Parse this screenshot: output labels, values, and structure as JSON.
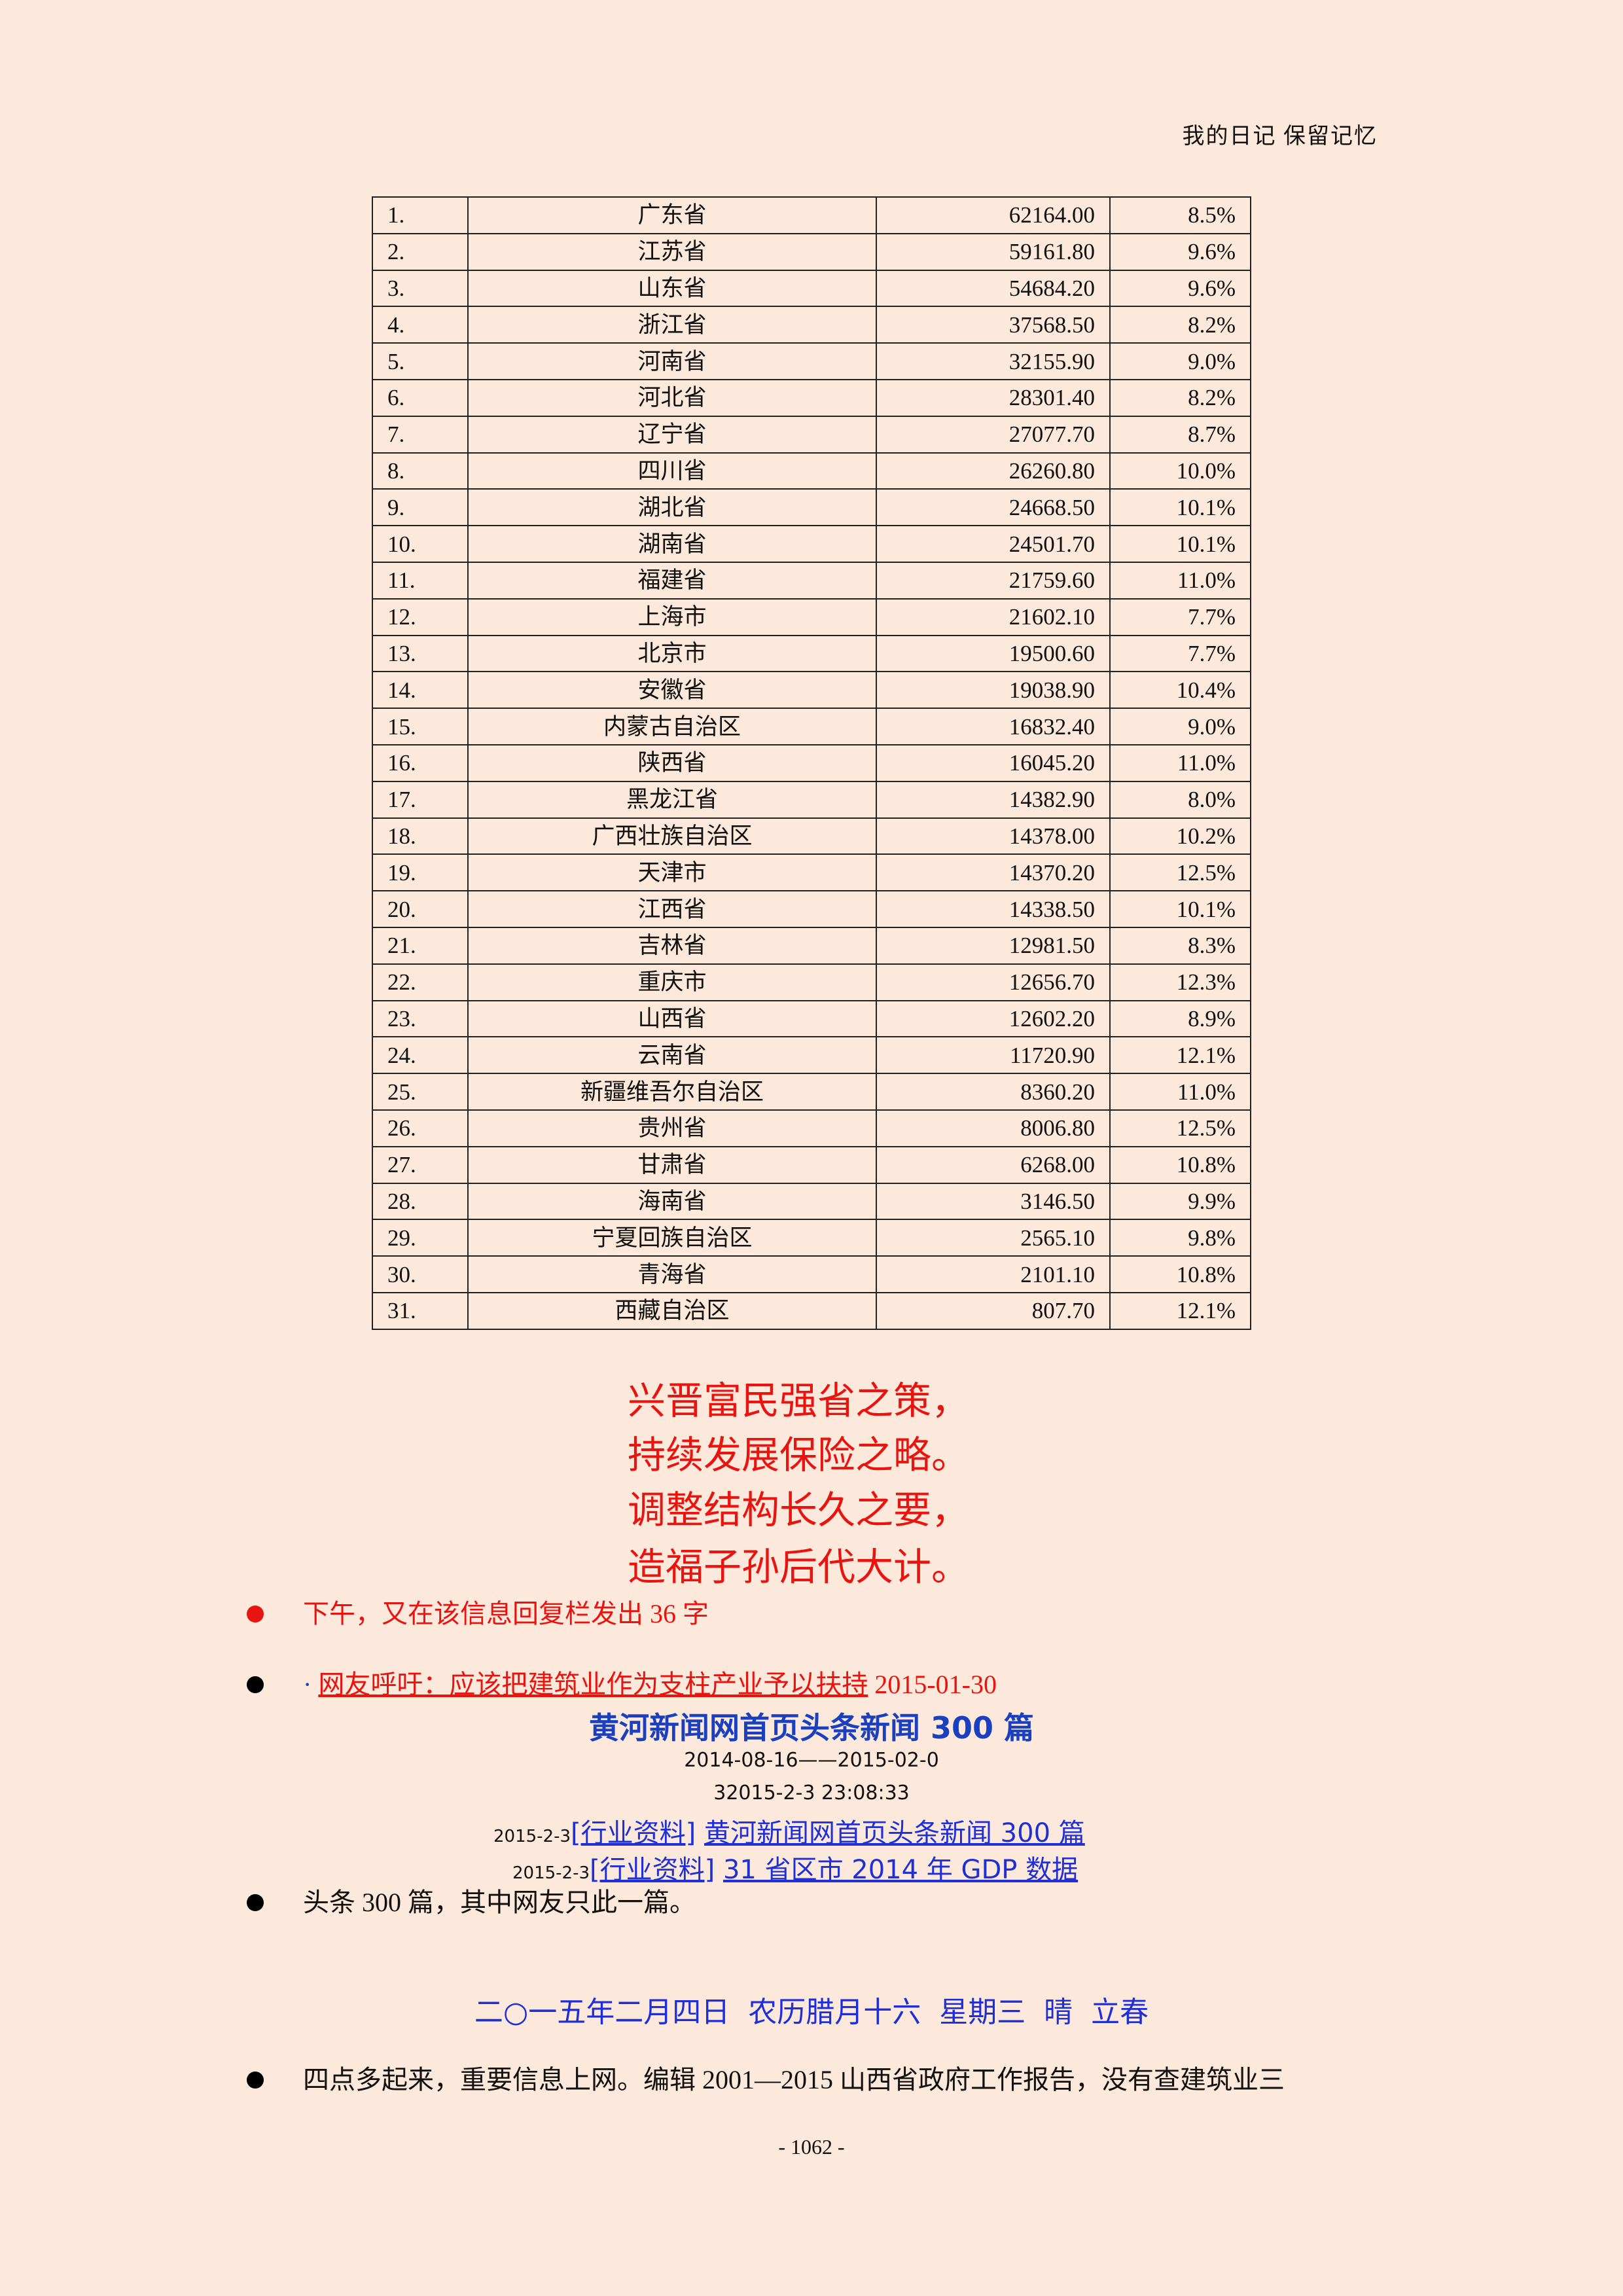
{
  "header": {
    "text": "我的日记 保留记忆"
  },
  "table": {
    "rows": [
      [
        "1.",
        "广东省",
        "62164.00",
        "8.5%"
      ],
      [
        "2.",
        "江苏省",
        "59161.80",
        "9.6%"
      ],
      [
        "3.",
        "山东省",
        "54684.20",
        "9.6%"
      ],
      [
        "4.",
        "浙江省",
        "37568.50",
        "8.2%"
      ],
      [
        "5.",
        "河南省",
        "32155.90",
        "9.0%"
      ],
      [
        "6.",
        "河北省",
        "28301.40",
        "8.2%"
      ],
      [
        "7.",
        "辽宁省",
        "27077.70",
        "8.7%"
      ],
      [
        "8.",
        "四川省",
        "26260.80",
        "10.0%"
      ],
      [
        "9.",
        "湖北省",
        "24668.50",
        "10.1%"
      ],
      [
        "10.",
        "湖南省",
        "24501.70",
        "10.1%"
      ],
      [
        "11.",
        "福建省",
        "21759.60",
        "11.0%"
      ],
      [
        "12.",
        "上海市",
        "21602.10",
        "7.7%"
      ],
      [
        "13.",
        "北京市",
        "19500.60",
        "7.7%"
      ],
      [
        "14.",
        "安徽省",
        "19038.90",
        "10.4%"
      ],
      [
        "15.",
        "内蒙古自治区",
        "16832.40",
        "9.0%"
      ],
      [
        "16.",
        "陕西省",
        "16045.20",
        "11.0%"
      ],
      [
        "17.",
        "黑龙江省",
        "14382.90",
        "8.0%"
      ],
      [
        "18.",
        "广西壮族自治区",
        "14378.00",
        "10.2%"
      ],
      [
        "19.",
        "天津市",
        "14370.20",
        "12.5%"
      ],
      [
        "20.",
        "江西省",
        "14338.50",
        "10.1%"
      ],
      [
        "21.",
        "吉林省",
        "12981.50",
        "8.3%"
      ],
      [
        "22.",
        "重庆市",
        "12656.70",
        "12.3%"
      ],
      [
        "23.",
        "山西省",
        "12602.20",
        "8.9%"
      ],
      [
        "24.",
        "云南省",
        "11720.90",
        "12.1%"
      ],
      [
        "25.",
        "新疆维吾尔自治区",
        "8360.20",
        "11.0%"
      ],
      [
        "26.",
        "贵州省",
        "8006.80",
        "12.5%"
      ],
      [
        "27.",
        "甘肃省",
        "6268.00",
        "10.8%"
      ],
      [
        "28.",
        "海南省",
        "3146.50",
        "9.9%"
      ],
      [
        "29.",
        "宁夏回族自治区",
        "2565.10",
        "9.8%"
      ],
      [
        "30.",
        "青海省",
        "2101.10",
        "10.8%"
      ],
      [
        "31.",
        "西藏自治区",
        "807.70",
        "12.1%"
      ]
    ]
  },
  "poem": [
    "兴晋富民强省之策，",
    "持续发展保险之略。",
    "调整结构长久之要，",
    "造福子孙后代大计。"
  ],
  "bullets": {
    "b1": "下午，又在该信息回复栏发出 36 字",
    "b2_dot": "·",
    "b2_link": "网友呼吁：应该把建筑业作为支柱产业予以扶持",
    "b2_date": "2015-01-30",
    "news_title": "黄河新闻网首页头条新闻 300 篇",
    "news_range": "2014-08-16——2015-02-0",
    "news_time": "32015-2-3 23:08:33",
    "link1_date": "2015-2-3",
    "link1_tag": "[行业资料]",
    "link1_title": "黄河新闻网首页头条新闻 300 篇",
    "link2_date": "2015-2-3",
    "link2_tag": "[行业资料]",
    "link2_title": "31 省区市 2014 年 GDP 数据",
    "b3": "头条 300 篇，其中网友只此一篇。",
    "date_heading": "二○一五年二月四日  农历腊月十六  星期三  晴  立春",
    "b4": "四点多起来，重要信息上网。编辑 2001—2015 山西省政府工作报告，没有查建筑业三"
  },
  "footer": {
    "page": "- 1062 -"
  },
  "colors": {
    "background": "#fce9dc",
    "red": "#e8140f",
    "blue": "#1a3fbf"
  }
}
